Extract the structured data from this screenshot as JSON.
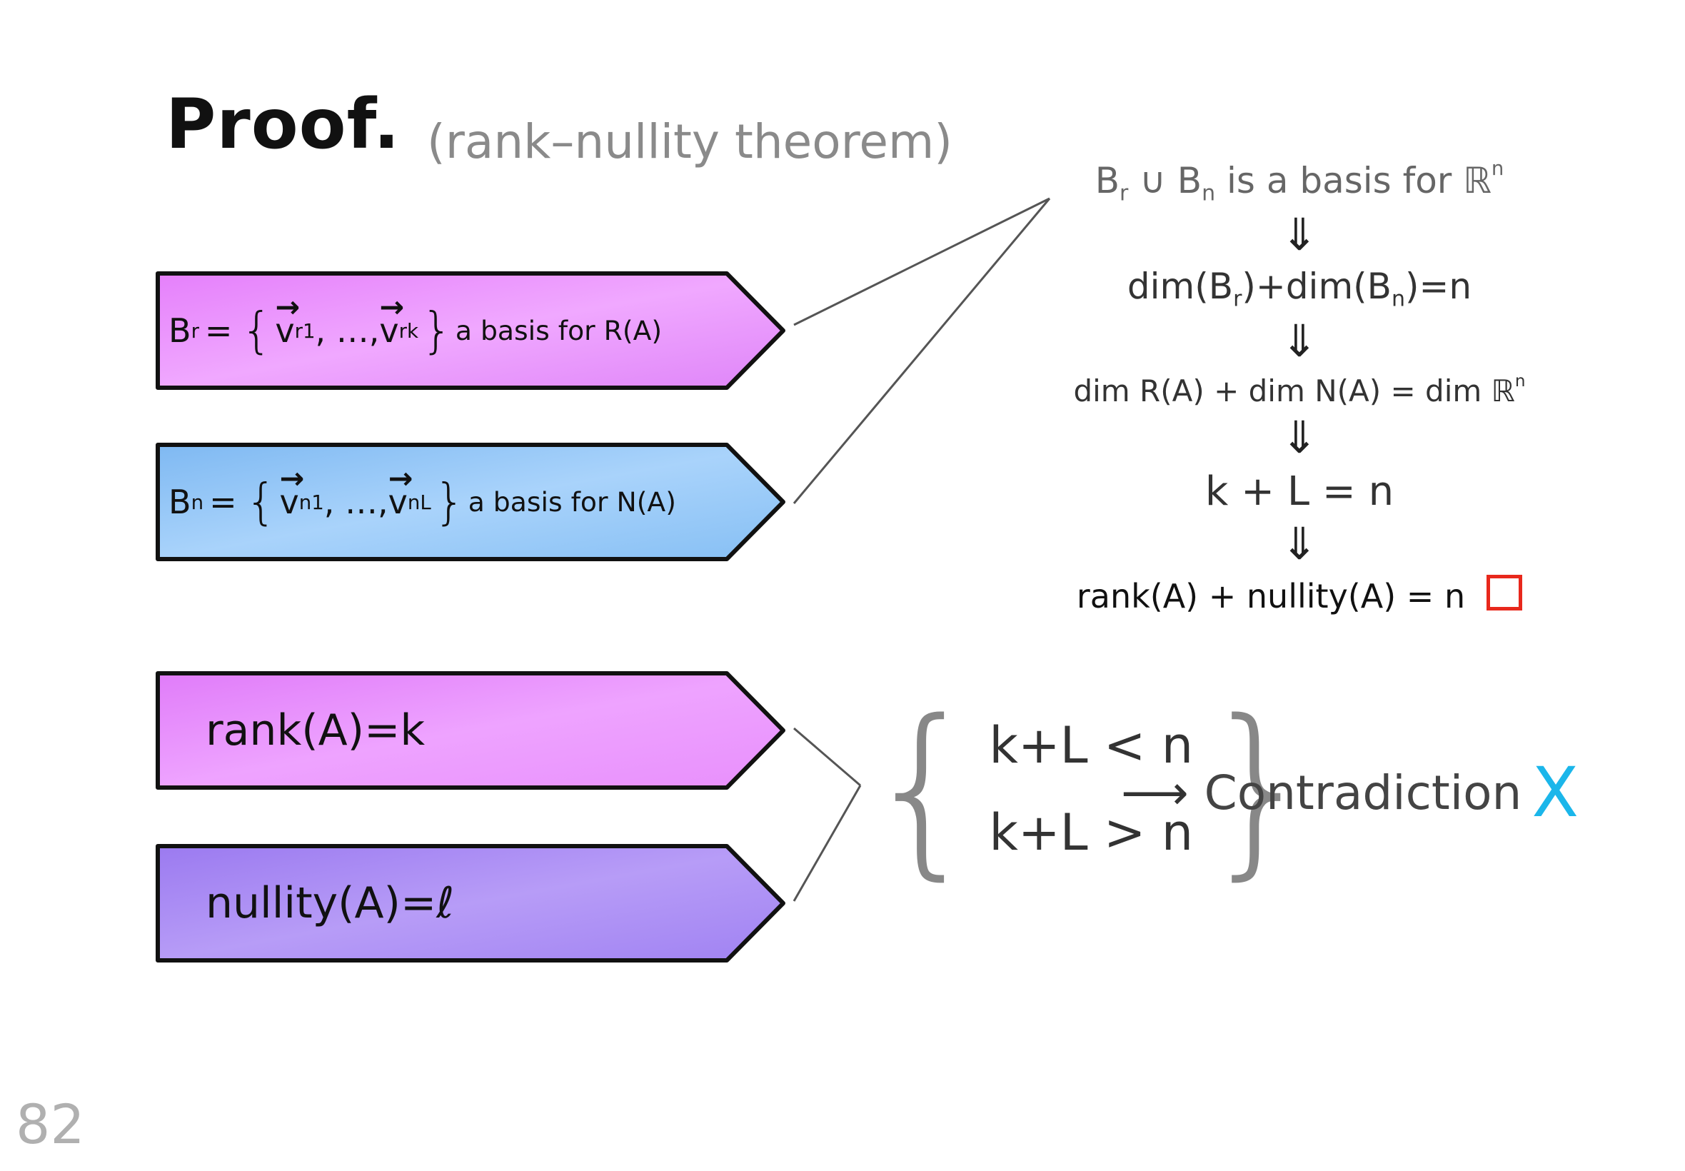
{
  "title": "Proof.",
  "subtitle": "(rank–nullity theorem)",
  "page_number": "82",
  "ribbons": [
    {
      "lhs": "B",
      "lhs_sub": "r",
      "vec_first": "v",
      "vec_first_sub": "r1",
      "vec_last": "v",
      "vec_last_sub": "rk",
      "text": "a basis for R(A)",
      "color": "#e58cff"
    },
    {
      "lhs": "B",
      "lhs_sub": "n",
      "vec_first": "v",
      "vec_first_sub": "n1",
      "vec_last": "v",
      "vec_last_sub": "nL",
      "text": "a basis for N(A)",
      "color": "#8ec4f5"
    },
    {
      "text": "rank(A)=k",
      "color": "#e58cff"
    },
    {
      "text": "nullity(A)=ℓ",
      "color": "#a98af2"
    }
  ],
  "chain": {
    "step1": "B",
    "step1_sub1": "r",
    "step1_mid": "∪ B",
    "step1_sub2": "n",
    "step1_rest": "is a basis for ℝ",
    "step1_sup": "n",
    "step2": "dim(B",
    "step2_sub1": "r",
    "step2_mid": ")+dim(B",
    "step2_sub2": "n",
    "step2_rest": ")=n",
    "step3": "dim R(A) + dim N(A) = dim ℝ",
    "step3_sup": "n",
    "step4": "k + L = n",
    "step5": "rank(A) + nullity(A) = n",
    "implies": "⇓",
    "qed_color": "#e8281c"
  },
  "cases": {
    "line1": "k+L < n",
    "line2": "k+L > n",
    "brace_left": "{",
    "brace_right": "}"
  },
  "contradiction": {
    "arrow": "⟶",
    "label": "Contradiction",
    "mark": "X",
    "mark_color": "#1bb6ea"
  }
}
